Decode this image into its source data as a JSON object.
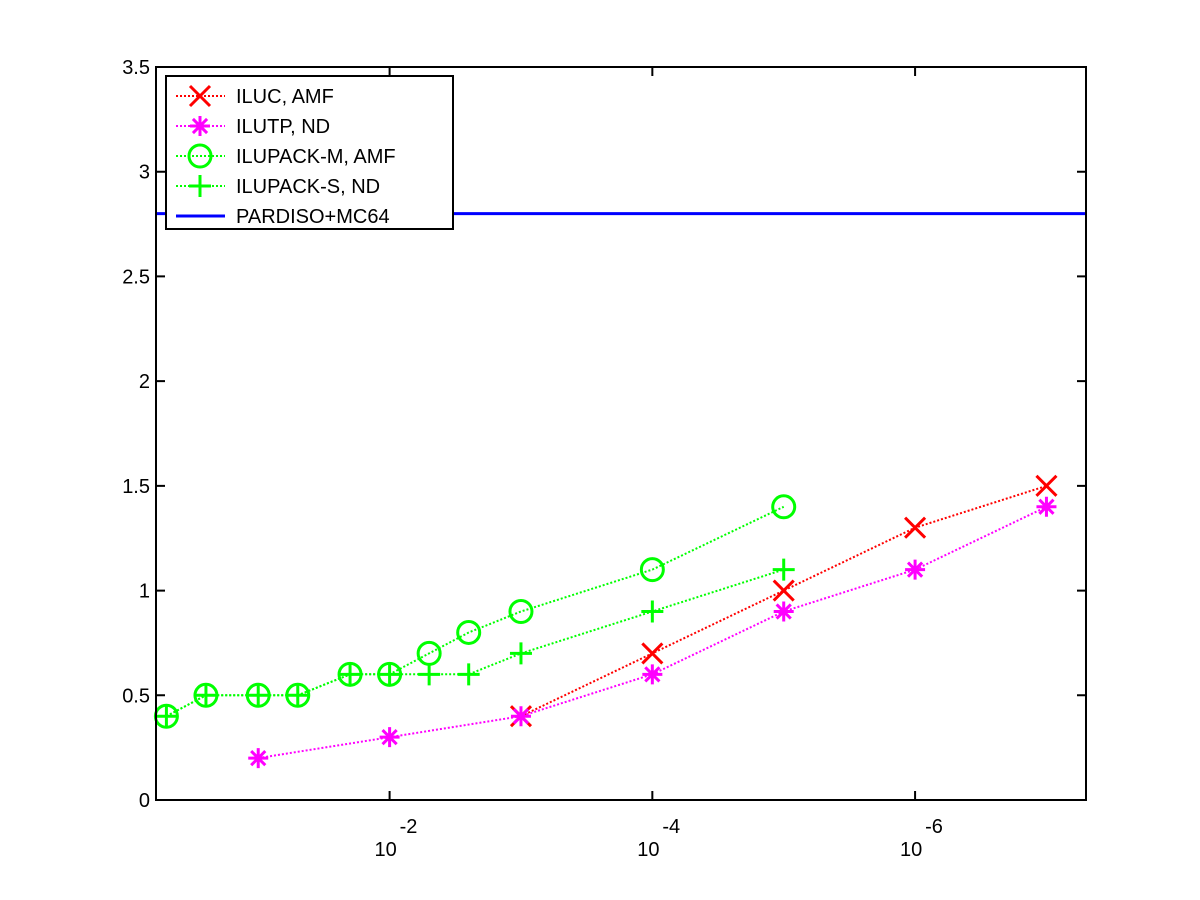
{
  "chart_data": {
    "type": "line",
    "title": "",
    "xlabel": "",
    "ylabel": "",
    "x_scale": "log",
    "x_reversed": true,
    "xlim": [
      0.6,
      5e-08
    ],
    "ylim": [
      0,
      3.5
    ],
    "grid": false,
    "legend_position": "top-left",
    "x_ticks": [
      {
        "value": 0.01,
        "base": "10",
        "exponent": "-2"
      },
      {
        "value": 0.0001,
        "base": "10",
        "exponent": "-4"
      },
      {
        "value": 1e-06,
        "base": "10",
        "exponent": "-6"
      }
    ],
    "y_ticks": [
      {
        "value": 0,
        "label": "0"
      },
      {
        "value": 0.5,
        "label": "0.5"
      },
      {
        "value": 1,
        "label": "1"
      },
      {
        "value": 1.5,
        "label": "1.5"
      },
      {
        "value": 2,
        "label": "2"
      },
      {
        "value": 2.5,
        "label": "2.5"
      },
      {
        "value": 3,
        "label": "3"
      },
      {
        "value": 3.5,
        "label": "3.5"
      }
    ],
    "series": [
      {
        "name": "ILUC, AMF",
        "color": "#ff0000",
        "marker": "x",
        "line_style": "dotted",
        "points": [
          {
            "x": 0.001,
            "y": 0.4
          },
          {
            "x": 0.0001,
            "y": 0.7
          },
          {
            "x": 1e-05,
            "y": 1.0
          },
          {
            "x": 1e-06,
            "y": 1.3
          },
          {
            "x": 1e-07,
            "y": 1.5
          }
        ]
      },
      {
        "name": "ILUTP,  ND",
        "color": "#ff00ff",
        "marker": "asterisk",
        "line_style": "dotted",
        "points": [
          {
            "x": 0.1,
            "y": 0.2
          },
          {
            "x": 0.01,
            "y": 0.3
          },
          {
            "x": 0.001,
            "y": 0.4
          },
          {
            "x": 0.0001,
            "y": 0.6
          },
          {
            "x": 1e-05,
            "y": 0.9
          },
          {
            "x": 1e-06,
            "y": 1.1
          },
          {
            "x": 1e-07,
            "y": 1.4
          }
        ]
      },
      {
        "name": "ILUPACK-M, AMF",
        "color": "#00ff00",
        "marker": "circle",
        "line_style": "dotted",
        "points": [
          {
            "x": 0.5,
            "y": 0.4
          },
          {
            "x": 0.25,
            "y": 0.5
          },
          {
            "x": 0.1,
            "y": 0.5
          },
          {
            "x": 0.05,
            "y": 0.5
          },
          {
            "x": 0.02,
            "y": 0.6
          },
          {
            "x": 0.01,
            "y": 0.6
          },
          {
            "x": 0.005,
            "y": 0.7
          },
          {
            "x": 0.0025,
            "y": 0.8
          },
          {
            "x": 0.001,
            "y": 0.9
          },
          {
            "x": 0.0001,
            "y": 1.1
          },
          {
            "x": 1e-05,
            "y": 1.4
          }
        ]
      },
      {
        "name": "ILUPACK-S, ND",
        "color": "#00ff00",
        "marker": "plus",
        "line_style": "dotted",
        "points": [
          {
            "x": 0.5,
            "y": 0.4
          },
          {
            "x": 0.25,
            "y": 0.5
          },
          {
            "x": 0.1,
            "y": 0.5
          },
          {
            "x": 0.05,
            "y": 0.5
          },
          {
            "x": 0.02,
            "y": 0.6
          },
          {
            "x": 0.01,
            "y": 0.6
          },
          {
            "x": 0.005,
            "y": 0.6
          },
          {
            "x": 0.0025,
            "y": 0.6
          },
          {
            "x": 0.001,
            "y": 0.7
          },
          {
            "x": 0.0001,
            "y": 0.9
          },
          {
            "x": 1e-05,
            "y": 1.1
          }
        ]
      },
      {
        "name": "PARDISO+MC64",
        "color": "#0000ff",
        "marker": "none",
        "line_style": "solid",
        "points": [
          {
            "x": 0.6,
            "y": 2.8
          },
          {
            "x": 5e-08,
            "y": 2.8
          }
        ]
      }
    ]
  }
}
